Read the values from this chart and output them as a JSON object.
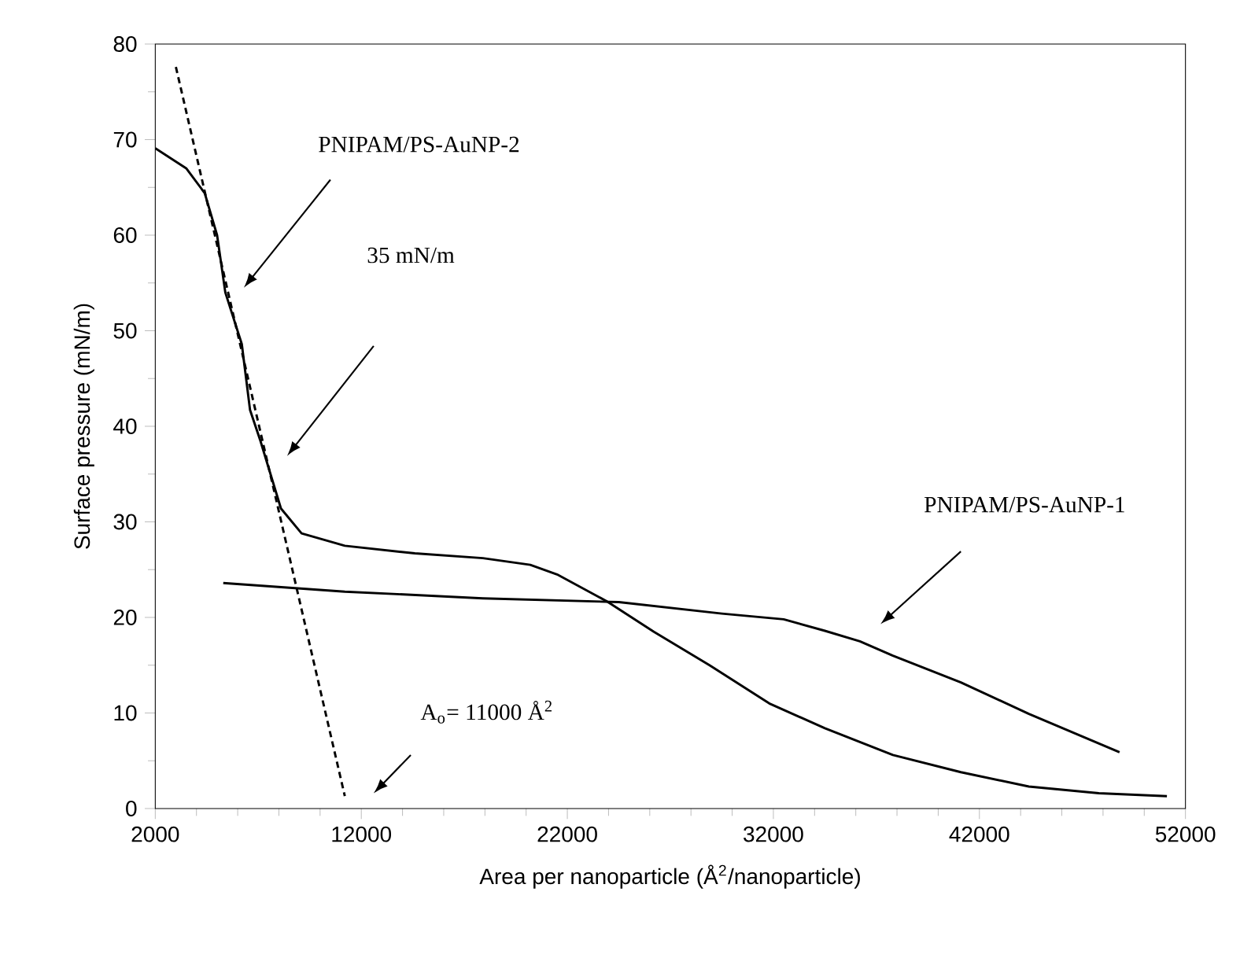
{
  "chart_data": {
    "type": "line",
    "xlabel": "Area per nanoparticle (Å$^{2}$/nanoparticle)",
    "ylabel": "Surface pressure (mN/m)",
    "xlim": [
      2000,
      52000
    ],
    "ylim": [
      0,
      80
    ],
    "xticks": [
      2000,
      12000,
      22000,
      32000,
      42000,
      52000
    ],
    "yticks": [
      0,
      10,
      20,
      30,
      40,
      50,
      60,
      70,
      80
    ],
    "grid": false,
    "marker": "none",
    "series": [
      {
        "color": "#000000",
        "line_style": "solid",
        "x": [
          2000,
          3500,
          4400,
          5000,
          5400,
          6200,
          6600,
          7100,
          8100,
          9100,
          11200,
          14600,
          17900,
          20200,
          21500,
          23900,
          26200,
          28900,
          31800,
          34500,
          37800,
          41100,
          44400,
          47800,
          51100
        ],
        "values": [
          69.1,
          67,
          64.4,
          60,
          54,
          48.6,
          41.7,
          38.5,
          31.4,
          28.8,
          27.5,
          26.7,
          26.2,
          25.5,
          24.5,
          21.7,
          18.5,
          15,
          11,
          8.4,
          5.6,
          3.8,
          2.3,
          1.6,
          1.3
        ]
      },
      {
        "color": "#000000",
        "line_style": "solid",
        "x": [
          5300,
          11200,
          17900,
          24500,
          29500,
          32500,
          34500,
          36200,
          37800,
          41100,
          44400,
          48800
        ],
        "values": [
          23.6,
          22.7,
          22,
          21.6,
          20.4,
          19.8,
          18.6,
          17.5,
          16,
          13.2,
          9.9,
          5.9
        ]
      },
      {
        "color": "#000000",
        "line_style": "dashed",
        "x": [
          3000,
          11200
        ],
        "values": [
          77.6,
          1.3
        ]
      }
    ],
    "annotations": [
      "PNIPAM/PS-AuNP-2",
      "35 mN/m",
      "PNIPAM/PS-AuNP-1",
      "A$_{o}$= 11000 Å$^{2}$"
    ]
  }
}
